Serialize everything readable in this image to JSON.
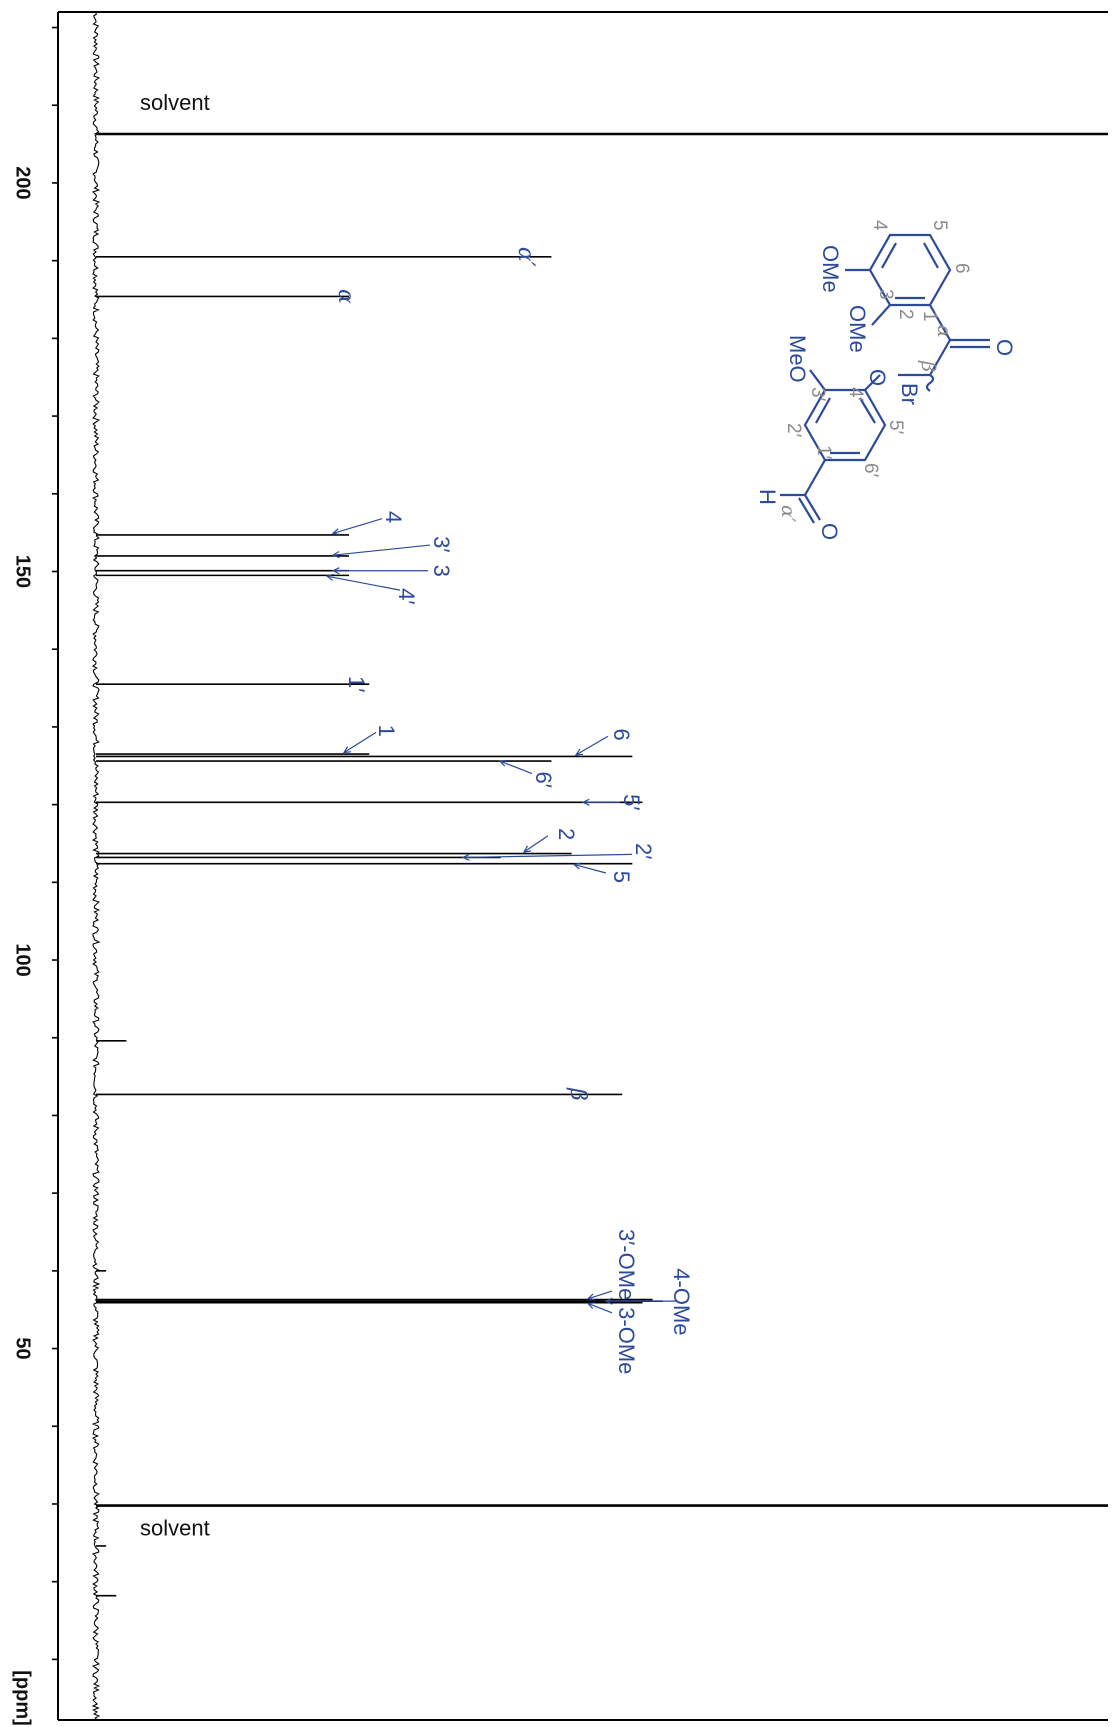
{
  "chart_data": {
    "type": "line",
    "title": "",
    "xlabel": "[ppm]",
    "ylabel": "",
    "axis_orientation": "ppm axis runs vertically, decreasing downward (spectrum rotated 90°)",
    "xlim": [
      222.0,
      2.2
    ],
    "xticks": [
      {
        "value": 200,
        "label": "200"
      },
      {
        "value": 150,
        "label": "150"
      },
      {
        "value": 100,
        "label": "100"
      },
      {
        "value": 50,
        "label": "50"
      }
    ],
    "minor_tick_spacing": 10,
    "intensity_scale": "relative, full width = 1.0",
    "series": [
      {
        "peaks": [
          {
            "ppm": 206.3,
            "intensity": 1.0,
            "label": "solvent",
            "label_style": "plain"
          },
          {
            "ppm": 190.5,
            "intensity": 0.45,
            "label": "α′",
            "label_style": "greek"
          },
          {
            "ppm": 185.4,
            "intensity": 0.25,
            "label": "α",
            "label_style": "greek"
          },
          {
            "ppm": 154.7,
            "intensity": 0.25,
            "label": "4",
            "label_style": "plain"
          },
          {
            "ppm": 152.0,
            "intensity": 0.25,
            "label": "3′",
            "label_style": "plain"
          },
          {
            "ppm": 150.1,
            "intensity": 0.25,
            "label": "3",
            "label_style": "plain"
          },
          {
            "ppm": 149.5,
            "intensity": 0.25,
            "label": "4′",
            "label_style": "plain"
          },
          {
            "ppm": 135.5,
            "intensity": 0.27,
            "label": "1′",
            "label_style": "plain"
          },
          {
            "ppm": 126.5,
            "intensity": 0.27,
            "label": "1",
            "label_style": "plain"
          },
          {
            "ppm": 126.2,
            "intensity": 0.53,
            "label": "6",
            "label_style": "plain"
          },
          {
            "ppm": 125.6,
            "intensity": 0.45,
            "label": "6′",
            "label_style": "plain"
          },
          {
            "ppm": 120.3,
            "intensity": 0.54,
            "label": "5′",
            "label_style": "plain"
          },
          {
            "ppm": 113.7,
            "intensity": 0.47,
            "label": "2",
            "label_style": "plain"
          },
          {
            "ppm": 113.2,
            "intensity": 0.4,
            "label": "2′",
            "label_style": "plain"
          },
          {
            "ppm": 112.4,
            "intensity": 0.53,
            "label": "5",
            "label_style": "plain"
          },
          {
            "ppm": 89.6,
            "intensity": 0.03,
            "label": "",
            "label_style": "plain"
          },
          {
            "ppm": 82.7,
            "intensity": 0.52,
            "label": "β",
            "label_style": "greek"
          },
          {
            "ppm": 60.0,
            "intensity": 0.01,
            "label": "",
            "label_style": "plain"
          },
          {
            "ppm": 56.3,
            "intensity": 0.55,
            "label": "3′-OMe",
            "label_style": "plain"
          },
          {
            "ppm": 56.1,
            "intensity": 0.56,
            "label": "4-OMe",
            "label_style": "plain"
          },
          {
            "ppm": 55.9,
            "intensity": 0.54,
            "label": "3-OMe",
            "label_style": "plain"
          },
          {
            "ppm": 29.8,
            "intensity": 1.0,
            "label": "solvent",
            "label_style": "plain"
          },
          {
            "ppm": 24.6,
            "intensity": 0.01,
            "label": "",
            "label_style": "plain"
          },
          {
            "ppm": 18.2,
            "intensity": 0.02,
            "label": "",
            "label_style": "plain"
          }
        ]
      }
    ]
  },
  "molecule": {
    "atoms_blue": [
      "O",
      "Br",
      "O",
      "OMe",
      "OMe",
      "MeO",
      "O",
      "H"
    ],
    "locants_grey": [
      "6",
      "5",
      "4",
      "3",
      "2",
      "1",
      "α",
      "β",
      "5′",
      "4′",
      "6′",
      "3′",
      "2′",
      "1′",
      "α′"
    ],
    "colors": {
      "structure": "#2b4a9a",
      "locant": "#8a8a8a"
    }
  },
  "colors": {
    "spectrum": "#000000",
    "annotation": "#2b4a9a",
    "axis": "#000000"
  }
}
